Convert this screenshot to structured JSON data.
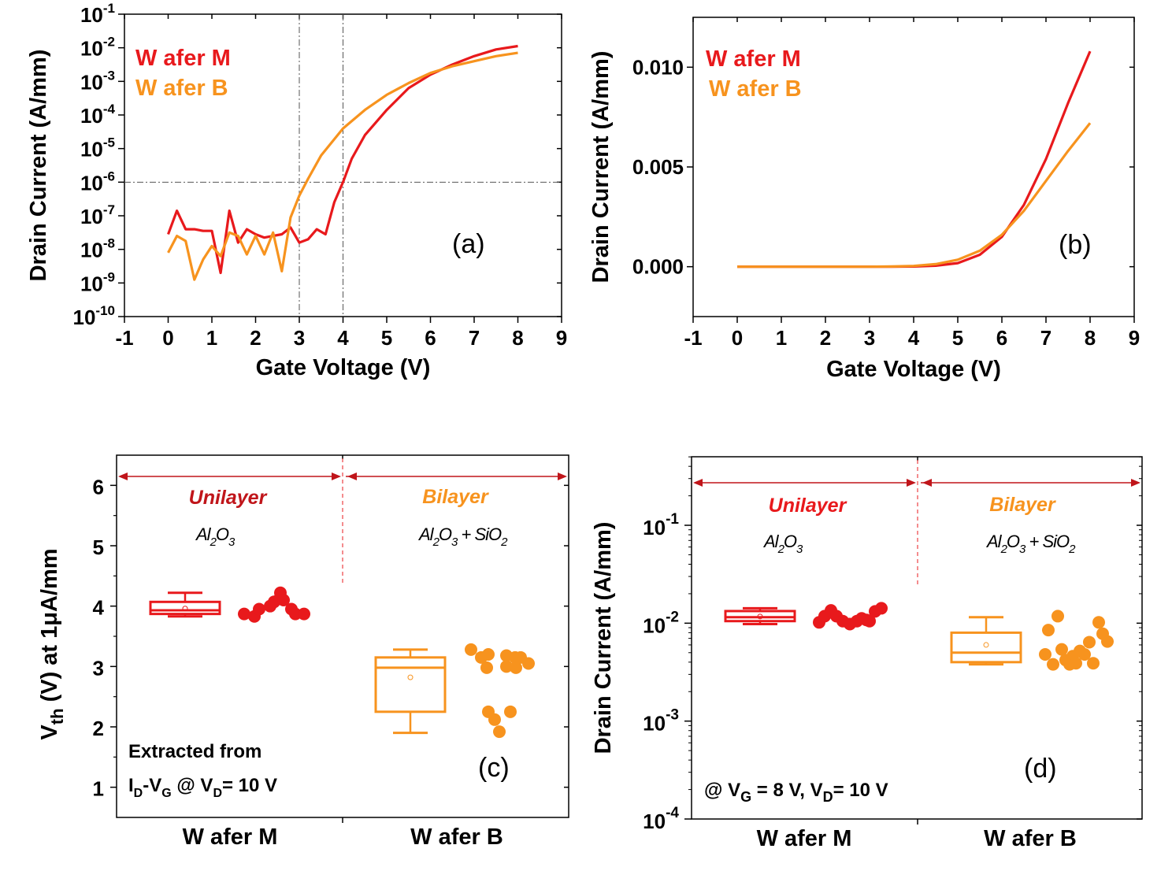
{
  "colors": {
    "wafer_m": "#e8191c",
    "wafer_b": "#f7931e",
    "dark_red": "#c0151a",
    "axis": "#000000",
    "guide": "#555555"
  },
  "chart_data": [
    {
      "panel": "a",
      "type": "line",
      "label": "(a)",
      "xlabel": "Gate Voltage (V)",
      "ylabel": "Drain Current (A/mm)",
      "yscale": "log",
      "xlim": [
        -1,
        9
      ],
      "ylim_exp": [
        -10,
        -1
      ],
      "xticks": [
        "-1",
        "0",
        "1",
        "2",
        "3",
        "4",
        "5",
        "6",
        "7",
        "8",
        "9"
      ],
      "yticks": [
        {
          "base": "10",
          "exp": "-10"
        },
        {
          "base": "10",
          "exp": "-9"
        },
        {
          "base": "10",
          "exp": "-8"
        },
        {
          "base": "10",
          "exp": "-7"
        },
        {
          "base": "10",
          "exp": "-6"
        },
        {
          "base": "10",
          "exp": "-5"
        },
        {
          "base": "10",
          "exp": "-4"
        },
        {
          "base": "10",
          "exp": "-3"
        },
        {
          "base": "10",
          "exp": "-2"
        },
        {
          "base": "10",
          "exp": "-1"
        }
      ],
      "guides": {
        "vertical": [
          3,
          4
        ],
        "horizontal_exp": -6
      },
      "legend": [
        "W afer M",
        "W afer B"
      ],
      "series": [
        {
          "name": "W afer M",
          "color_key": "wafer_m",
          "x": [
            0,
            0.2,
            0.4,
            0.6,
            0.8,
            1.0,
            1.2,
            1.4,
            1.6,
            1.8,
            2.0,
            2.2,
            2.4,
            2.6,
            2.8,
            3.0,
            3.2,
            3.4,
            3.6,
            3.8,
            4.0,
            4.2,
            4.5,
            5.0,
            5.5,
            6.0,
            6.5,
            7.0,
            7.5,
            8.0
          ],
          "log": [
            -7.55,
            -6.85,
            -7.4,
            -7.4,
            -7.45,
            -7.45,
            -8.7,
            -6.85,
            -7.8,
            -7.4,
            -7.55,
            -7.65,
            -7.6,
            -7.55,
            -7.35,
            -7.8,
            -7.7,
            -7.4,
            -7.55,
            -6.6,
            -6.0,
            -5.3,
            -4.6,
            -3.85,
            -3.2,
            -2.8,
            -2.5,
            -2.25,
            -2.05,
            -1.95
          ]
        },
        {
          "name": "W afer B",
          "color_key": "wafer_b",
          "x": [
            0,
            0.2,
            0.4,
            0.6,
            0.8,
            1.0,
            1.2,
            1.4,
            1.6,
            1.8,
            2.0,
            2.2,
            2.4,
            2.6,
            2.8,
            3.0,
            3.2,
            3.5,
            4.0,
            4.5,
            5.0,
            5.5,
            6.0,
            6.5,
            7.0,
            7.5,
            8.0
          ],
          "log": [
            -8.1,
            -7.6,
            -7.75,
            -8.9,
            -8.3,
            -7.9,
            -8.2,
            -7.5,
            -7.6,
            -8.15,
            -7.6,
            -8.15,
            -7.5,
            -8.65,
            -7.05,
            -6.4,
            -5.9,
            -5.2,
            -4.4,
            -3.85,
            -3.4,
            -3.05,
            -2.75,
            -2.55,
            -2.4,
            -2.25,
            -2.15
          ]
        }
      ]
    },
    {
      "panel": "b",
      "type": "line",
      "label": "(b)",
      "xlabel": "Gate Voltage (V)",
      "ylabel": "Drain Current (A/mm)",
      "xlim": [
        -1,
        9
      ],
      "ylim": [
        -0.0025,
        0.0125
      ],
      "xticks": [
        "-1",
        "0",
        "1",
        "2",
        "3",
        "4",
        "5",
        "6",
        "7",
        "8",
        "9"
      ],
      "yticks": [
        {
          "v": 0.0,
          "label": "0.000"
        },
        {
          "v": 0.005,
          "label": "0.005"
        },
        {
          "v": 0.01,
          "label": "0.010"
        }
      ],
      "legend": [
        "W afer M",
        "W afer B"
      ],
      "series": [
        {
          "name": "W afer M",
          "color_key": "wafer_m",
          "x": [
            0,
            1,
            2,
            3,
            3.5,
            4,
            4.5,
            5,
            5.5,
            6,
            6.5,
            7,
            7.5,
            8
          ],
          "y": [
            0,
            0,
            0,
            0,
            0,
            1e-05,
            5e-05,
            0.00018,
            0.0006,
            0.0015,
            0.0031,
            0.0054,
            0.0082,
            0.0108
          ]
        },
        {
          "name": "W afer B",
          "color_key": "wafer_b",
          "x": [
            0,
            1,
            2,
            3,
            3.5,
            4,
            4.5,
            5,
            5.5,
            6,
            6.5,
            7,
            7.5,
            8
          ],
          "y": [
            0,
            0,
            0,
            0,
            1e-05,
            4e-05,
            0.00013,
            0.00035,
            0.0008,
            0.0016,
            0.0028,
            0.0043,
            0.0058,
            0.0072
          ]
        }
      ]
    },
    {
      "panel": "c",
      "type": "box+scatter",
      "label": "(c)",
      "ylabel_main": "V",
      "ylabel_sub": "th",
      "ylabel_rest": " (V) at 1μA/mm",
      "ylim": [
        0.5,
        6.5
      ],
      "yticks": [
        "1",
        "2",
        "3",
        "4",
        "5",
        "6"
      ],
      "categories": [
        "W afer M",
        "W afer B"
      ],
      "regions": [
        {
          "title": "Unilayer",
          "color_key": "dark_red",
          "formula": [
            {
              "t": "Al"
            },
            {
              "s": "2"
            },
            {
              "t": "O"
            },
            {
              "s": "3"
            }
          ]
        },
        {
          "title": "Bilayer",
          "color_key": "wafer_b",
          "formula": [
            {
              "t": "Al"
            },
            {
              "s": "2"
            },
            {
              "t": "O"
            },
            {
              "s": "3"
            },
            {
              "t": " + SiO"
            },
            {
              "s": "2"
            }
          ]
        }
      ],
      "note_line1": "Extracted from",
      "note_line2": [
        {
          "t": "I"
        },
        {
          "s": "D"
        },
        {
          "t": "-V"
        },
        {
          "s": "G"
        },
        {
          "t": " @ V"
        },
        {
          "s": "D"
        },
        {
          "t": "= 10 V"
        }
      ],
      "groups": [
        {
          "name": "W afer M",
          "color_key": "wafer_m",
          "box": {
            "whisker_low": 3.83,
            "q1": 3.87,
            "median": 3.93,
            "mean": 3.96,
            "q3": 4.07,
            "whisker_high": 4.22
          },
          "points": [
            3.87,
            3.83,
            3.95,
            4.0,
            4.07,
            4.12,
            4.22,
            4.1,
            3.95,
            3.87,
            3.87
          ]
        },
        {
          "name": "W afer B",
          "color_key": "wafer_b",
          "box": {
            "whisker_low": 1.9,
            "q1": 2.25,
            "median": 2.98,
            "mean": 2.82,
            "q3": 3.15,
            "whisker_high": 3.28
          },
          "points": [
            3.28,
            3.15,
            2.98,
            3.2,
            2.25,
            1.92,
            2.12,
            3.0,
            3.18,
            2.25,
            3.15,
            2.98,
            3.15,
            3.05
          ]
        }
      ]
    },
    {
      "panel": "d",
      "type": "box+scatter",
      "label": "(d)",
      "ylabel": "Drain Current (A/mm)",
      "yscale": "log",
      "ylim_exp": [
        -4,
        -0.3
      ],
      "yticks": [
        {
          "base": "10",
          "exp": "-4"
        },
        {
          "base": "10",
          "exp": "-3"
        },
        {
          "base": "10",
          "exp": "-2"
        },
        {
          "base": "10",
          "exp": "-1"
        }
      ],
      "categories": [
        "W afer M",
        "W afer B"
      ],
      "regions": [
        {
          "title": "Unilayer",
          "color_key": "wafer_m",
          "formula": [
            {
              "t": "Al"
            },
            {
              "s": "2"
            },
            {
              "t": "O"
            },
            {
              "s": "3"
            }
          ]
        },
        {
          "title": "Bilayer",
          "color_key": "wafer_b",
          "formula": [
            {
              "t": "Al"
            },
            {
              "s": "2"
            },
            {
              "t": "O"
            },
            {
              "s": "3"
            },
            {
              "t": " + SiO"
            },
            {
              "s": "2"
            }
          ]
        }
      ],
      "note": [
        {
          "t": "@ V"
        },
        {
          "s": "G"
        },
        {
          "t": " = 8 V, V"
        },
        {
          "s": "D"
        },
        {
          "t": "= 10 V"
        }
      ],
      "groups": [
        {
          "name": "W afer M",
          "color_key": "wafer_m",
          "box": {
            "whisker_low": 0.0098,
            "q1": 0.0105,
            "median": 0.0115,
            "mean": 0.0117,
            "q3": 0.0133,
            "whisker_high": 0.0142
          },
          "points": [
            0.0102,
            0.0118,
            0.0135,
            0.0118,
            0.0105,
            0.0098,
            0.0105,
            0.0112,
            0.0108,
            0.0105,
            0.0132,
            0.0142
          ]
        },
        {
          "name": "W afer B",
          "color_key": "wafer_b",
          "box": {
            "whisker_low": 0.0038,
            "q1": 0.004,
            "median": 0.005,
            "mean": 0.006,
            "q3": 0.008,
            "whisker_high": 0.0115
          },
          "points": [
            0.0048,
            0.0085,
            0.0038,
            0.0118,
            0.0054,
            0.0042,
            0.0038,
            0.0046,
            0.0039,
            0.0052,
            0.0048,
            0.0064,
            0.0039,
            0.0102,
            0.0078,
            0.0065
          ]
        }
      ]
    }
  ]
}
